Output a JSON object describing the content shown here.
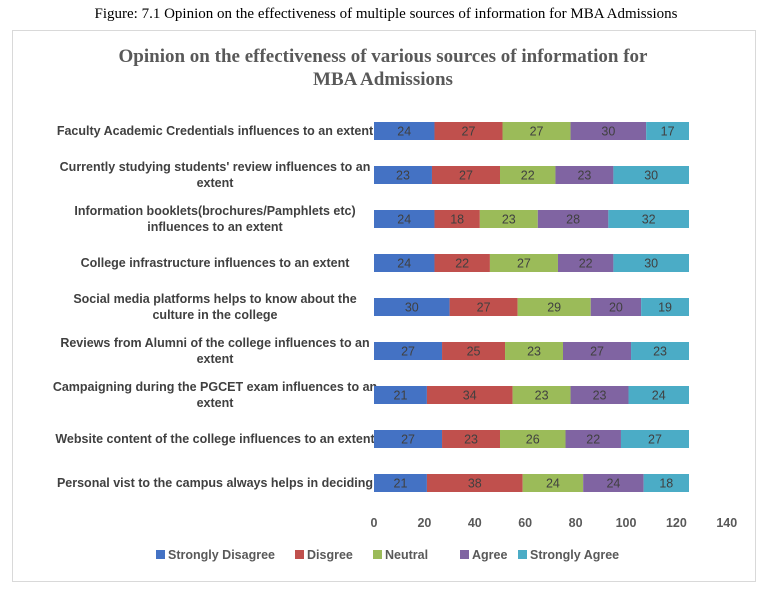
{
  "caption": "Figure: 7.1 Opinion on the effectiveness of multiple sources of information for MBA Admissions",
  "chart_data": {
    "type": "bar",
    "orientation": "horizontal",
    "stacked": true,
    "title_lines": [
      "Opinion on the effectiveness of various sources of information for",
      "MBA Admissions"
    ],
    "categories": [
      [
        "Faculty Academic Credentials influences to an extent"
      ],
      [
        "Currently studying students' review influences to an",
        "extent"
      ],
      [
        "Information booklets(brochures/Pamphlets etc)",
        "influences to an extent"
      ],
      [
        "College infrastructure influences to an extent"
      ],
      [
        "Social media platforms  helps to know about the",
        "culture in the college"
      ],
      [
        "Reviews from Alumni of the college influences to an",
        "extent"
      ],
      [
        "Campaigning during the PGCET exam influences to an",
        "extent"
      ],
      [
        "Website content of the college influences to an extent"
      ],
      [
        "Personal vist to the campus always helps in deciding"
      ]
    ],
    "series": [
      {
        "name": "Strongly Disagree",
        "color": "#4472c4",
        "values": [
          24,
          23,
          24,
          24,
          30,
          27,
          21,
          27,
          21
        ]
      },
      {
        "name": "Disgree",
        "color": "#c0504d",
        "values": [
          27,
          27,
          18,
          22,
          27,
          25,
          34,
          23,
          38
        ]
      },
      {
        "name": "Neutral",
        "color": "#9bbb59",
        "values": [
          27,
          22,
          23,
          27,
          29,
          23,
          23,
          26,
          24
        ]
      },
      {
        "name": "Agree",
        "color": "#8064a2",
        "values": [
          30,
          23,
          28,
          22,
          20,
          27,
          23,
          22,
          24
        ]
      },
      {
        "name": "Strongly Agree",
        "color": "#4bacc6",
        "values": [
          17,
          30,
          32,
          30,
          19,
          23,
          24,
          27,
          18
        ]
      }
    ],
    "xlim": [
      0,
      140
    ],
    "xticks": [
      0,
      20,
      40,
      60,
      80,
      100,
      120,
      140
    ],
    "grid": false,
    "legend_position": "bottom"
  }
}
